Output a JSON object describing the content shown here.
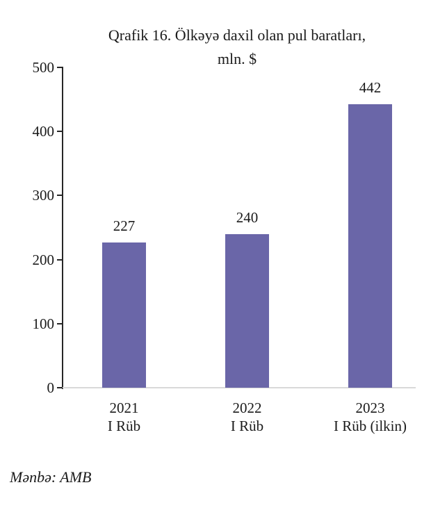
{
  "title": {
    "line1": "Qrafik 16. Ölkəyə daxil olan pul baratları,",
    "line2": "mln. $"
  },
  "source_note": "Mənbə: AMB",
  "chart_data": {
    "type": "bar",
    "title": "Qrafik 16. Ölkəyə daxil olan pul baratları, mln. $",
    "categories": [
      {
        "line1": "2021",
        "line2": "I Rüb"
      },
      {
        "line1": "2022",
        "line2": "I Rüb"
      },
      {
        "line1": "2023",
        "line2": "I Rüb (ilkin)"
      }
    ],
    "values": [
      227,
      240,
      442
    ],
    "data_labels": [
      "227",
      "240",
      "442"
    ],
    "xlabel": "",
    "ylabel": "",
    "ylim": [
      0,
      500
    ],
    "yticks": [
      0,
      100,
      200,
      300,
      400,
      500
    ],
    "grid": false,
    "legend": false,
    "source": "Mənbə: AMB",
    "colors": {
      "bar": "#6A66A8",
      "axis": "#262626",
      "baseline": "#D9D9D9",
      "text": "#1A1A1A"
    }
  }
}
